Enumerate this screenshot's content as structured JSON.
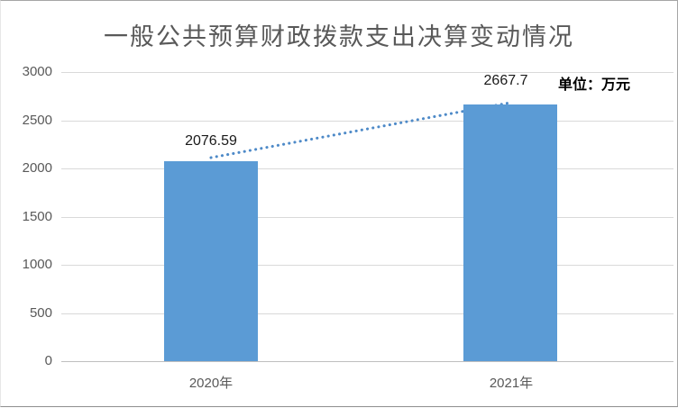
{
  "chart_data": {
    "type": "bar",
    "title": "一般公共预算财政拨款支出决算变动情况",
    "unit_label": "单位：万元",
    "categories": [
      "2020年",
      "2021年"
    ],
    "values": [
      2076.59,
      2667.7
    ],
    "value_labels": [
      "2076.59",
      "2667.7"
    ],
    "y_ticks": [
      0,
      500,
      1000,
      1500,
      2000,
      2500,
      3000
    ],
    "y_tick_labels": [
      "0",
      "500",
      "1000",
      "1500",
      "2000",
      "2500",
      "3000"
    ],
    "ylim": [
      0,
      3000
    ],
    "grid": true,
    "legend": "none",
    "trendline": "dotted line connecting bar tops",
    "colors": {
      "bar_fill": "#5B9BD5",
      "trend_line": "#4E8AC8",
      "gridline": "#D9D9D9",
      "axis_line": "#BFBFBF",
      "title_text": "#595959",
      "axis_text": "#595959",
      "data_label_text": "#1A1A1A",
      "unit_text": "#000000",
      "background": "#FFFFFF"
    }
  }
}
